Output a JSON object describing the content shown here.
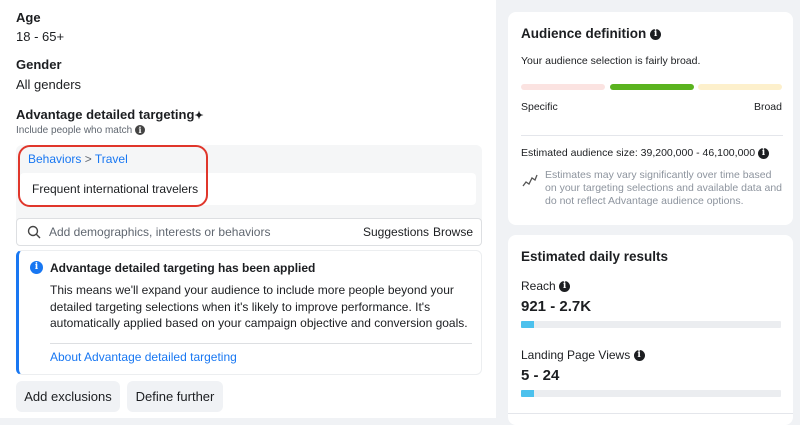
{
  "age": {
    "label": "Age",
    "value": "18 - 65+"
  },
  "gender": {
    "label": "Gender",
    "value": "All genders"
  },
  "detailed": {
    "title": "Advantage detailed targeting",
    "title_mark": "✦",
    "subtitle": "Include people who match",
    "breadcrumb_a": "Behaviors",
    "breadcrumb_sep": ">",
    "breadcrumb_b": "Travel",
    "selection": "Frequent international travelers",
    "search_placeholder": "Add demographics, interests or behaviors",
    "suggestions": "Suggestions",
    "browse": "Browse"
  },
  "notice": {
    "title": "Advantage detailed targeting has been applied",
    "body": "This means we'll expand your audience to include more people beyond your detailed targeting selections when it's likely to improve performance. It's automatically applied based on your campaign objective and conversion goals.",
    "link": "About Advantage detailed targeting"
  },
  "buttons": {
    "exclusions": "Add exclusions",
    "define": "Define further"
  },
  "audience": {
    "title": "Audience definition",
    "status": "Your audience selection is fairly broad.",
    "specific": "Specific",
    "broad": "Broad",
    "level": "middle",
    "size": "Estimated audience size: 39,200,000 - 46,100,000",
    "disclaimer": "Estimates may vary significantly over time based on your targeting selections and available data and do not reflect Advantage audience options."
  },
  "results": {
    "title": "Estimated daily results",
    "reach": {
      "label": "Reach",
      "value": "921 - 2.7K",
      "fill_pct": 5
    },
    "lpv": {
      "label": "Landing Page Views",
      "value": "5 - 24",
      "fill_pct": 5
    }
  },
  "colors": {
    "accent": "#1877f2",
    "green": "#5ab31f",
    "highlight": "#e0362b",
    "bar": "#4cc1ed"
  }
}
